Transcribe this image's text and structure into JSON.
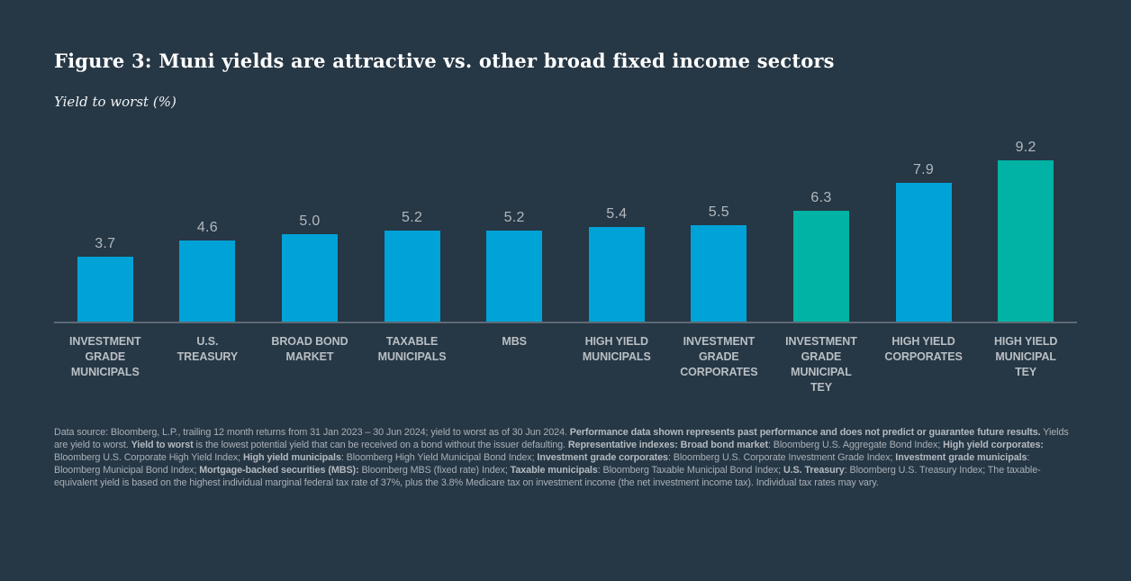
{
  "page": {
    "background": "#263745"
  },
  "figure": {
    "title": "Figure 3: Muni yields are attractive vs. other broad fixed income sectors",
    "subtitle": "Yield to worst (%)"
  },
  "colors": {
    "blue": "#00a3d7",
    "teal": "#00b3a4",
    "axis_line": "#5e6a74",
    "value_label": "#b2b9bf",
    "category_label": "#b9bfc4",
    "title_text": "#ffffff",
    "footnote_text": "#a9b0b7",
    "background": "#263745"
  },
  "chart_data": {
    "type": "bar",
    "title": "Figure 3: Muni yields are attractive vs. other broad fixed income sectors",
    "ylabel": "Yield to worst (%)",
    "xlabel": "",
    "ylim": [
      0,
      10
    ],
    "grid": false,
    "legend": false,
    "value_labels_shown": true,
    "categories": [
      "INVESTMENT GRADE MUNICIPALS",
      "U.S. TREASURY",
      "BROAD BOND MARKET",
      "TAXABLE MUNICIPALS",
      "MBS",
      "HIGH YIELD MUNICIPALS",
      "INVESTMENT GRADE CORPORATES",
      "INVESTMENT GRADE MUNICIPAL TEY",
      "HIGH YIELD CORPORATES",
      "HIGH YIELD MUNICIPAL TEY"
    ],
    "values": [
      3.7,
      4.6,
      5.0,
      5.2,
      5.2,
      5.4,
      5.5,
      6.3,
      7.9,
      9.2
    ],
    "bar_color_keys": [
      "blue",
      "blue",
      "blue",
      "blue",
      "blue",
      "blue",
      "blue",
      "teal",
      "blue",
      "teal"
    ]
  },
  "footnote": {
    "segments": [
      {
        "t": "Data source: Bloomberg, L.P., trailing 12 month returns from 31 Jan 2023 – 30 Jun 2024; yield to worst as of 30 Jun 2024. ",
        "b": false
      },
      {
        "t": "Performance data shown represents past performance and does not predict or guarantee future results.",
        "b": true
      },
      {
        "t": " Yields are yield to worst. ",
        "b": false
      },
      {
        "t": "Yield to worst",
        "b": true
      },
      {
        "t": " is the lowest potential yield that can be received on a bond without the issuer defaulting. ",
        "b": false
      },
      {
        "t": "Representative indexes: Broad bond market",
        "b": true
      },
      {
        "t": ": Bloomberg U.S. Aggregate Bond Index; ",
        "b": false
      },
      {
        "t": "High yield corporates:",
        "b": true
      },
      {
        "t": " Bloomberg U.S. Corporate High Yield Index; ",
        "b": false
      },
      {
        "t": "High yield municipals",
        "b": true
      },
      {
        "t": ": Bloomberg High Yield Municipal Bond Index; ",
        "b": false
      },
      {
        "t": "Investment grade corporates",
        "b": true
      },
      {
        "t": ": Bloomberg U.S. Corporate Investment Grade Index; ",
        "b": false
      },
      {
        "t": "Investment grade municipals",
        "b": true
      },
      {
        "t": ": Bloomberg Municipal Bond Index; ",
        "b": false
      },
      {
        "t": "Mortgage-backed securities (MBS):",
        "b": true
      },
      {
        "t": " Bloomberg MBS (fixed rate) Index; ",
        "b": false
      },
      {
        "t": "Taxable municipals",
        "b": true
      },
      {
        "t": ": Bloomberg Taxable Municipal Bond Index; ",
        "b": false
      },
      {
        "t": "U.S. Treasury",
        "b": true
      },
      {
        "t": ": Bloomberg U.S. Treasury Index; The taxable-equivalent yield is based on the highest individual marginal federal tax rate of 37%, plus the 3.8% Medicare tax on investment income (the net investment income tax). Individual tax rates may vary.",
        "b": false
      }
    ]
  }
}
